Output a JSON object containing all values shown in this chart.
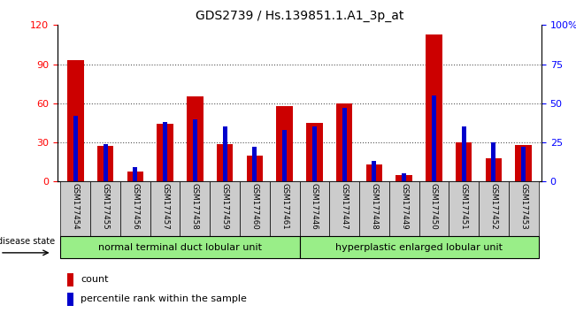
{
  "title": "GDS2739 / Hs.139851.1.A1_3p_at",
  "samples": [
    "GSM177454",
    "GSM177455",
    "GSM177456",
    "GSM177457",
    "GSM177458",
    "GSM177459",
    "GSM177460",
    "GSM177461",
    "GSM177446",
    "GSM177447",
    "GSM177448",
    "GSM177449",
    "GSM177450",
    "GSM177451",
    "GSM177452",
    "GSM177453"
  ],
  "count": [
    93,
    27,
    8,
    44,
    65,
    29,
    20,
    58,
    45,
    60,
    13,
    5,
    113,
    30,
    18,
    28
  ],
  "percentile": [
    42,
    24,
    9,
    38,
    40,
    35,
    22,
    33,
    35,
    47,
    13,
    5,
    55,
    35,
    25,
    22
  ],
  "group1_label": "normal terminal duct lobular unit",
  "group2_label": "hyperplastic enlarged lobular unit",
  "group1_count": 8,
  "group2_count": 8,
  "legend_count": "count",
  "legend_pct": "percentile rank within the sample",
  "disease_state_label": "disease state",
  "ylim_left": [
    0,
    120
  ],
  "ylim_right": [
    0,
    100
  ],
  "left_ticks": [
    0,
    30,
    60,
    90,
    120
  ],
  "right_ticks": [
    0,
    25,
    50,
    75,
    100
  ],
  "right_tick_labels": [
    "0",
    "25",
    "50",
    "75",
    "100%"
  ],
  "bar_color_red": "#cc0000",
  "bar_color_blue": "#0000cc",
  "group_bg_color": "#99ee88",
  "xlabel_bg_color": "#cccccc",
  "red_bar_width": 0.55,
  "blue_bar_width": 0.15,
  "dotted_line_color": "#555555"
}
